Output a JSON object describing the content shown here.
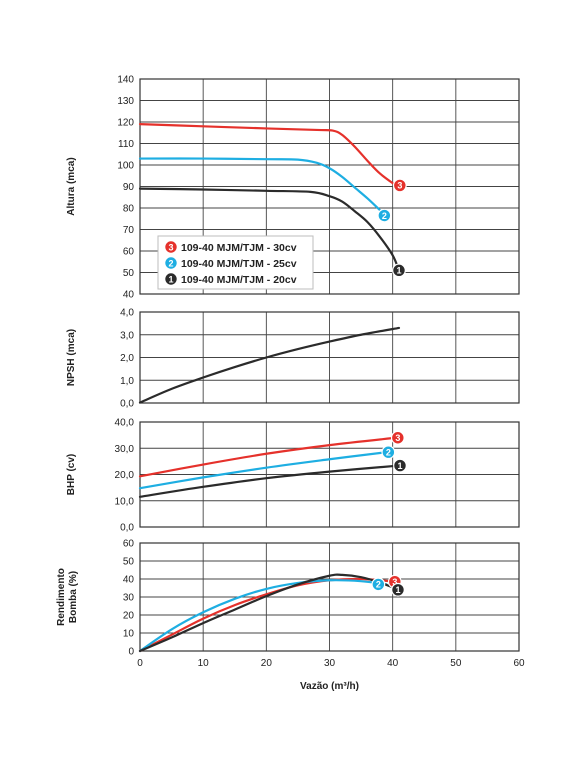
{
  "chart_data": [
    {
      "type": "line",
      "ylabel": "Altura (mca)",
      "xlabel": "",
      "xlim": [
        0,
        60
      ],
      "ylim": [
        40,
        140
      ],
      "yticks": [
        "40",
        "50",
        "60",
        "70",
        "80",
        "90",
        "100",
        "110",
        "120",
        "130",
        "140"
      ],
      "grid": true,
      "legend": "middle-left",
      "series": [
        {
          "name": "109-40 MJM/TJM - 30cv",
          "marker": "3",
          "color": "#e5312b",
          "x": [
            0,
            10,
            20,
            28,
            30.5,
            32,
            34,
            36,
            38,
            40.5
          ],
          "y": [
            119,
            118,
            117,
            116.3,
            116,
            114,
            108.5,
            102,
            96,
            90.5
          ]
        },
        {
          "name": "109-40 MJM/TJM - 25cv",
          "marker": "2",
          "color": "#1eaee2",
          "x": [
            0,
            10,
            20,
            25,
            28,
            30,
            32,
            34,
            36,
            38,
            39
          ],
          "y": [
            103,
            103,
            102.7,
            102.5,
            101,
            98.5,
            94.5,
            89.5,
            84.5,
            79,
            76.5
          ]
        },
        {
          "name": "109-40 MJM/TJM - 20cv",
          "marker": "1",
          "color": "#2b2b2b",
          "x": [
            0,
            10,
            20,
            27,
            30,
            32,
            34,
            36,
            38,
            40,
            41
          ],
          "y": [
            89,
            88.6,
            88,
            87.5,
            85.5,
            83,
            78.5,
            73.5,
            66.5,
            58,
            51
          ]
        }
      ]
    },
    {
      "type": "line",
      "ylabel": "NPSH (mca)",
      "xlabel": "",
      "xlim": [
        0,
        60
      ],
      "ylim": [
        0,
        4
      ],
      "yticks": [
        "0,0",
        "1,0",
        "2,0",
        "3,0",
        "4,0"
      ],
      "grid": true,
      "series": [
        {
          "name": "",
          "marker": "",
          "color": "#2b2b2b",
          "x": [
            0,
            5,
            10,
            15,
            20,
            25,
            30,
            35,
            41
          ],
          "y": [
            0.02,
            0.62,
            1.12,
            1.58,
            2.0,
            2.37,
            2.7,
            3.0,
            3.3
          ]
        }
      ]
    },
    {
      "type": "line",
      "ylabel": "BHP (cv)",
      "xlabel": "",
      "xlim": [
        0,
        60
      ],
      "ylim": [
        0,
        40
      ],
      "yticks": [
        "0,0",
        "10,0",
        "20,0",
        "30,0",
        "40,0"
      ],
      "grid": true,
      "series": [
        {
          "name": "",
          "marker": "3",
          "color": "#e5312b",
          "x": [
            0,
            10,
            20,
            30,
            40.5
          ],
          "y": [
            19.3,
            23.8,
            27.9,
            31.2,
            34.0
          ]
        },
        {
          "name": "",
          "marker": "2",
          "color": "#1eaee2",
          "x": [
            0,
            10,
            20,
            30,
            39
          ],
          "y": [
            14.8,
            18.9,
            22.6,
            25.8,
            28.5
          ]
        },
        {
          "name": "",
          "marker": "1",
          "color": "#2b2b2b",
          "x": [
            0,
            10,
            20,
            30,
            41
          ],
          "y": [
            11.5,
            15.3,
            18.6,
            21.1,
            23.4
          ]
        }
      ]
    },
    {
      "type": "line",
      "ylabel": "Rendimento Bomba (%)",
      "xlabel": "Vazão (m³/h)",
      "xlim": [
        0,
        60
      ],
      "ylim": [
        0,
        60
      ],
      "xticks": [
        "0",
        "10",
        "20",
        "30",
        "40",
        "50",
        "60"
      ],
      "yticks": [
        "0",
        "10",
        "20",
        "30",
        "40",
        "50",
        "60"
      ],
      "grid": true,
      "series": [
        {
          "name": "",
          "marker": "3",
          "color": "#e5312b",
          "x": [
            0,
            5,
            10,
            15,
            20,
            25,
            30,
            35,
            40.5
          ],
          "y": [
            0,
            9,
            18,
            25.5,
            31.5,
            36.5,
            39.3,
            40,
            38.5
          ]
        },
        {
          "name": "",
          "marker": "2",
          "color": "#1eaee2",
          "x": [
            0,
            5,
            10,
            15,
            20,
            25,
            30,
            35,
            39
          ],
          "y": [
            0,
            12,
            21.5,
            29,
            34.5,
            37.8,
            39.3,
            38.8,
            37
          ]
        },
        {
          "name": "",
          "marker": "1",
          "color": "#2b2b2b",
          "x": [
            0,
            5,
            10,
            15,
            20,
            25,
            30,
            32,
            35,
            38,
            41
          ],
          "y": [
            0,
            7.5,
            15.5,
            23,
            30.5,
            37,
            41.8,
            42.3,
            41,
            38,
            34
          ]
        }
      ]
    }
  ]
}
